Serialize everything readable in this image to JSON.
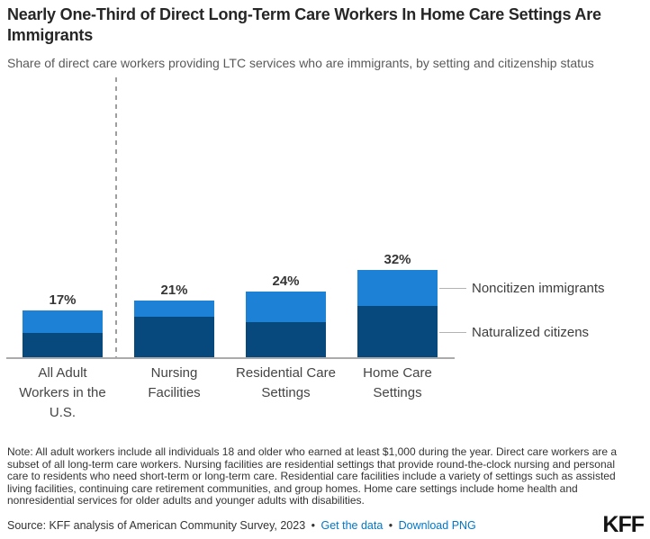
{
  "header": {
    "title": "Nearly One-Third of Direct Long-Term Care Workers In Home Care Settings Are Immigrants",
    "subtitle": "Share of direct care workers providing LTC services who are immigrants, by setting and citizenship status"
  },
  "chart_data": {
    "type": "bar",
    "stacked": true,
    "categories": [
      "All Adult\nWorkers in the\nU.S.",
      "Nursing\nFacilities",
      "Residential Care\nSettings",
      "Home Care\nSettings"
    ],
    "series": [
      {
        "name": "Naturalized citizens",
        "color": "#07497d",
        "values": [
          9,
          15,
          13,
          19
        ]
      },
      {
        "name": "Noncitizen immigrants",
        "color": "#1d82d5",
        "values": [
          8,
          6,
          11,
          13
        ]
      }
    ],
    "totals": [
      17,
      21,
      24,
      32
    ],
    "total_labels": [
      "17%",
      "21%",
      "24%",
      "32%"
    ],
    "ylabel": "",
    "xlabel": "",
    "ylim": [
      0,
      35
    ],
    "grid": false,
    "legend_position": "right-annotations",
    "separator_note": "dashed divider between first bar and the three LTC setting bars"
  },
  "footer": {
    "note": "Note: All adult workers include all individuals 18 and older who earned at least $1,000 during the year. Direct care workers are a subset of all long-term care workers. Nursing facilities are residential settings that provide round-the-clock nursing and personal care to residents who need short-term or long-term care. Residential care facilities include a variety of settings such as assisted living facilities, continuing care retirement communities, and group homes. Home care settings include home health and nonresidential services for older adults and younger adults with disabilities.",
    "source_prefix": "Source: KFF analysis of American Community Survey, 2023",
    "separator": "•",
    "links": [
      {
        "label": "Get the data"
      },
      {
        "label": "Download PNG"
      }
    ],
    "logo": "KFF"
  },
  "colors": {
    "naturalized": "#07497d",
    "noncitizen": "#1d82d5",
    "axis": "#ababab",
    "dashed_separator": "#9e9e9e",
    "link": "#0077c8",
    "title_text": "#262626",
    "body_text": "#333333"
  }
}
